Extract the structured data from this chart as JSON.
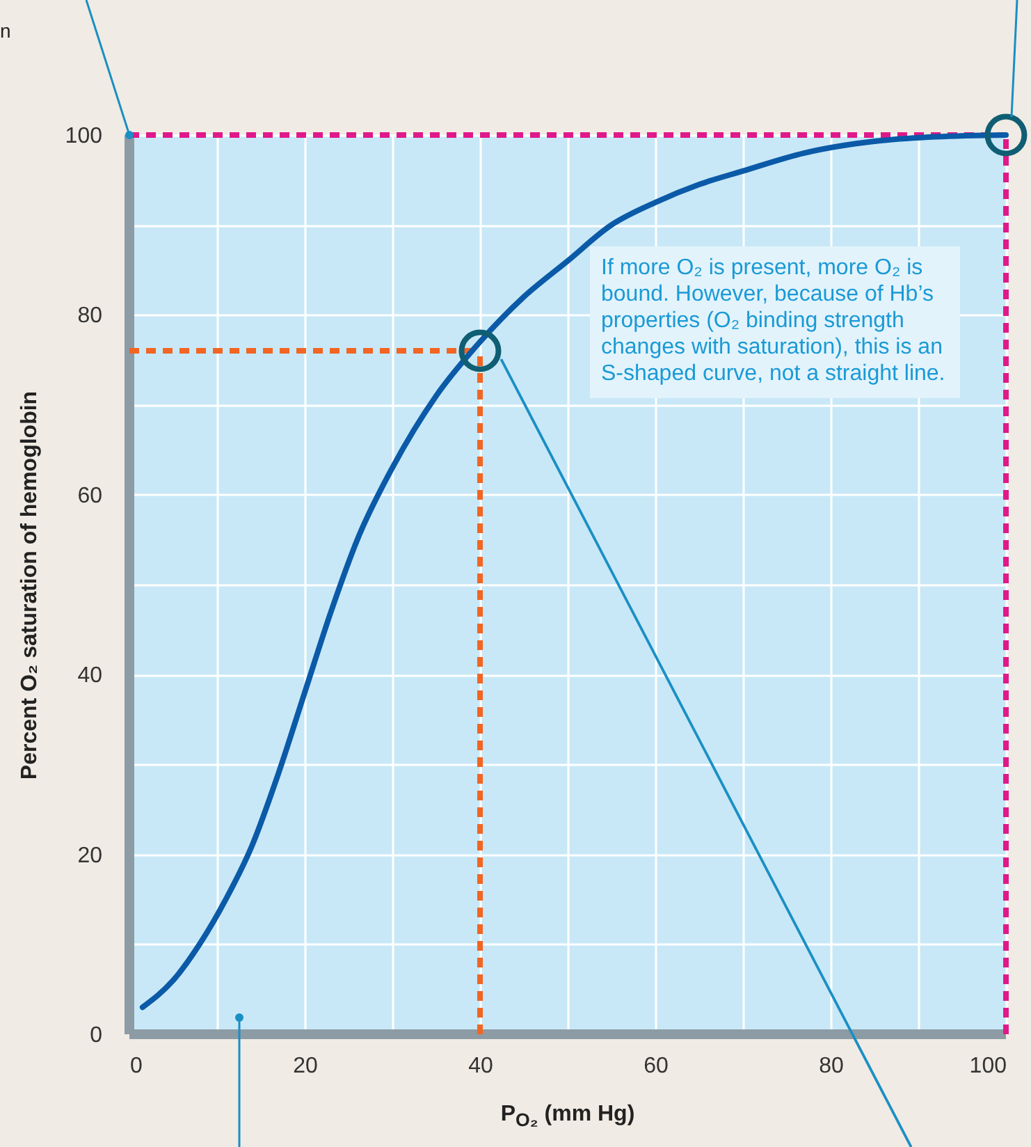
{
  "chart_data": {
    "type": "line",
    "xlabel": "P$_{O₂}$ (mm Hg)",
    "ylabel": "Percent O₂ saturation of hemoglobin",
    "x": [
      1.5,
      5,
      8,
      11,
      14,
      17,
      20,
      23,
      26,
      30,
      35,
      40,
      45,
      50,
      55,
      60,
      65,
      70,
      77,
      85,
      92,
      100
    ],
    "series": [
      {
        "color": "#0b5aa8",
        "marker": "none",
        "values": [
          3,
          6,
          10,
          15,
          21,
          29,
          38,
          47,
          55,
          63,
          71,
          77,
          82,
          86,
          90,
          92.5,
          94.5,
          96,
          98,
          99.3,
          99.8,
          100
        ]
      },
      {
        "type": "scatter",
        "marker": "circle",
        "color": "#0f5e73",
        "x": [
          40,
          100
        ],
        "values": [
          76,
          100
        ]
      }
    ],
    "xlim": [
      0,
      100
    ],
    "ylim": [
      0,
      100
    ],
    "xticks": [
      0,
      {
        "value": 10,
        "label": null
      },
      20,
      {
        "value": 30,
        "label": null
      },
      40,
      {
        "value": 50,
        "label": null
      },
      60,
      {
        "value": 70,
        "label": null
      },
      80,
      {
        "value": 90,
        "label": null
      },
      100
    ],
    "yticks": [
      0,
      {
        "value": 10,
        "label": null
      },
      20,
      {
        "value": 30,
        "label": null
      },
      40,
      {
        "value": 50,
        "label": null
      },
      60,
      {
        "value": 70,
        "label": null
      },
      80,
      {
        "value": 90,
        "label": null
      },
      100
    ],
    "grid": true,
    "line_style": "solid",
    "ref_lines": [
      {
        "axis": "y",
        "value": 100,
        "color": "#e0198a",
        "line_style": "dashed"
      },
      {
        "axis": "x",
        "value": 100,
        "color": "#e0198a",
        "line_style": "dashed"
      },
      {
        "axis": "y",
        "value": 76,
        "color": "#f26522",
        "line_style": "dashed"
      },
      {
        "axis": "x",
        "value": 40,
        "color": "#f26522",
        "line_style": "dashed"
      }
    ],
    "annotations": [
      "If more O₂ is present, more O₂ is bound. However, because of Hb’s properties (O₂ binding strength changes with saturation), this is an S-shaped curve, not a straight line.",
      "n"
    ]
  }
}
